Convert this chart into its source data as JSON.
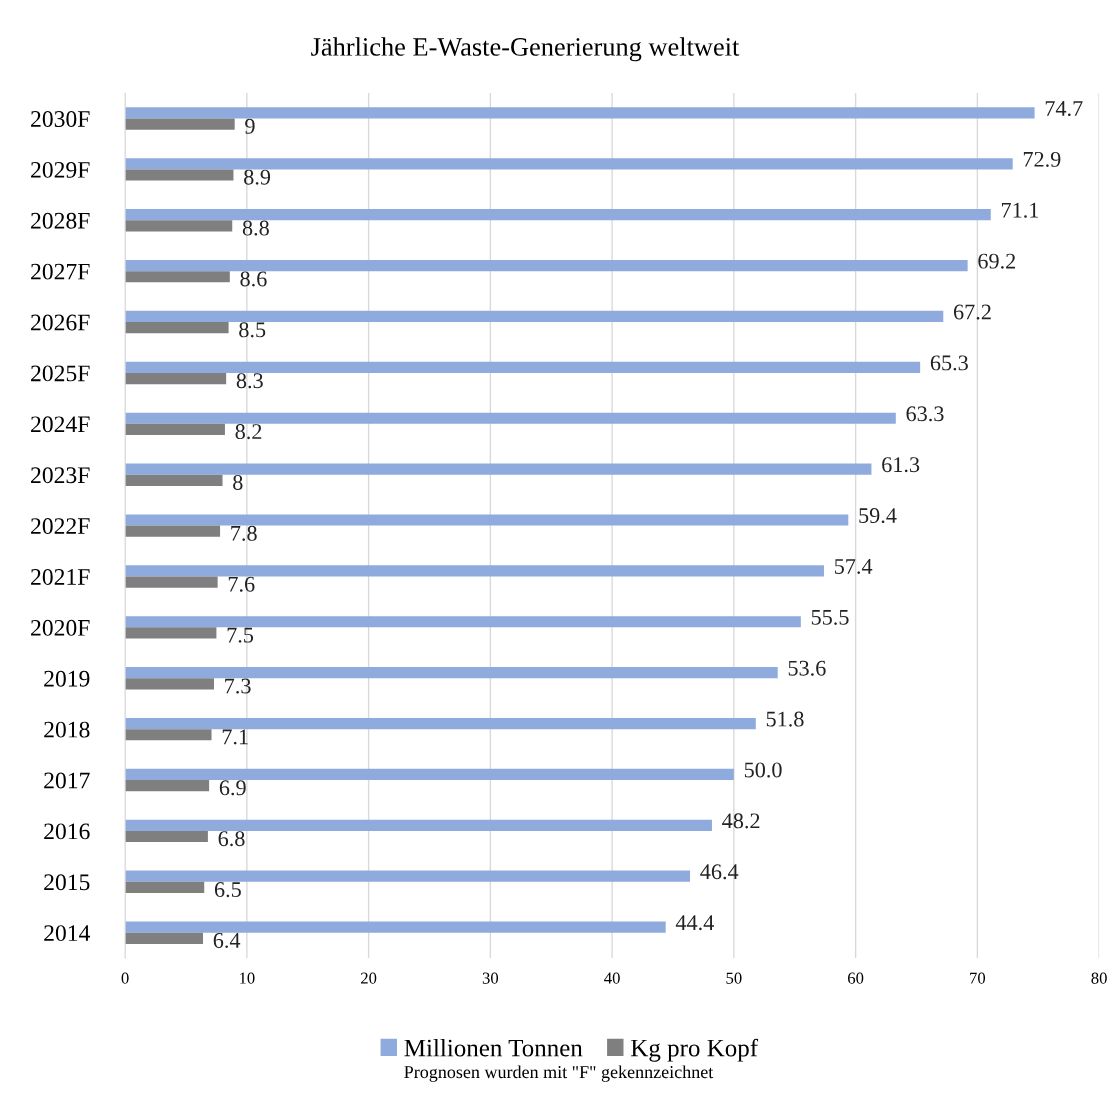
{
  "chart_data": {
    "type": "bar",
    "orientation": "horizontal",
    "title": "Jährliche E-Waste-Generierung weltweit",
    "categories": [
      "2030F",
      "2029F",
      "2028F",
      "2027F",
      "2026F",
      "2025F",
      "2024F",
      "2023F",
      "2022F",
      "2021F",
      "2020F",
      "2019",
      "2018",
      "2017",
      "2016",
      "2015",
      "2014"
    ],
    "series": [
      {
        "name": "Millionen Tonnen",
        "color": "#8faadc",
        "values": [
          74.7,
          72.9,
          71.1,
          69.2,
          67.2,
          65.3,
          63.3,
          61.3,
          59.4,
          57.4,
          55.5,
          53.6,
          51.8,
          50.0,
          48.2,
          46.4,
          44.4
        ],
        "value_labels": [
          "74.7",
          "72.9",
          "71.1",
          "69.2",
          "67.2",
          "65.3",
          "63.3",
          "61.3",
          "59.4",
          "57.4",
          "55.5",
          "53.6",
          "51.8",
          "50.0",
          "48.2",
          "46.4",
          "44.4"
        ]
      },
      {
        "name": "Kg pro Kopf",
        "color": "#7f7f7f",
        "values": [
          9,
          8.9,
          8.8,
          8.6,
          8.5,
          8.3,
          8.2,
          8,
          7.8,
          7.6,
          7.5,
          7.3,
          7.1,
          6.9,
          6.8,
          6.5,
          6.4
        ],
        "value_labels": [
          "9",
          "8.9",
          "8.8",
          "8.6",
          "8.5",
          "8.3",
          "8.2",
          "8",
          "7.8",
          "7.6",
          "7.5",
          "7.3",
          "7.1",
          "6.9",
          "6.8",
          "6.5",
          "6.4"
        ]
      }
    ],
    "xlim": [
      0,
      80
    ],
    "xticks": [
      0,
      10,
      20,
      30,
      40,
      50,
      60,
      70,
      80
    ],
    "grid": "x",
    "legend": "bottom",
    "annotations": [
      "Prognosen wurden mit \"F\" gekennzeichnet"
    ]
  }
}
